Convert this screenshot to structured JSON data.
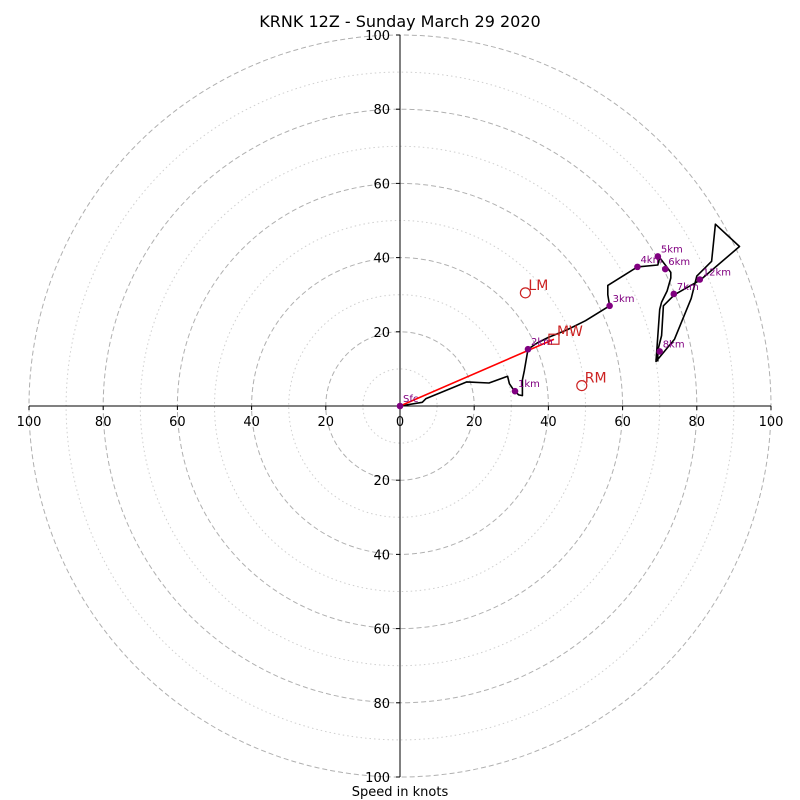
{
  "chart_data": {
    "type": "scatter",
    "subtype": "hodograph",
    "title": "KRNK 12Z - Sunday March 29 2020",
    "xlabel": "Speed in knots",
    "ylabel": "",
    "xlim": [
      -100,
      100
    ],
    "ylim": [
      -100,
      100
    ],
    "ring_major": [
      20,
      40,
      60,
      80,
      100
    ],
    "ring_minor": [
      10,
      30,
      50,
      70,
      90
    ],
    "x_ticks": [
      "100",
      "80",
      "60",
      "40",
      "20",
      "0",
      "20",
      "40",
      "60",
      "80",
      "100"
    ],
    "x_tick_values": [
      -100,
      -80,
      -60,
      -40,
      -20,
      0,
      20,
      40,
      60,
      80,
      100
    ],
    "y_ticks": [
      "100",
      "80",
      "60",
      "40",
      "20",
      "20",
      "40",
      "60",
      "80",
      "100"
    ],
    "y_tick_values": [
      100,
      80,
      60,
      40,
      20,
      -20,
      -40,
      -60,
      -80,
      -100
    ],
    "grid": true,
    "colors": {
      "trace": "#000000",
      "height_points": "#800080",
      "storm_motion": "#cc2222",
      "mean_wind_vector": "#ff0000",
      "grid": "#b0b0b0"
    },
    "series": [
      {
        "x": [
          0,
          6,
          7,
          18,
          24,
          29,
          29.5,
          30.5,
          32,
          33,
          33,
          33.5,
          34.5,
          37,
          40,
          45,
          50,
          56.5,
          56,
          56,
          64,
          69.5,
          70,
          71.5,
          73,
          73,
          72,
          70.5,
          70,
          69,
          74,
          78.5,
          80,
          84,
          85,
          91.5,
          81,
          74,
          71,
          70.5,
          69.5,
          69.5
        ],
        "y": [
          0,
          1,
          2,
          6.5,
          6.2,
          8,
          6,
          4.5,
          3,
          2.8,
          7,
          9.5,
          15.3,
          17,
          18.5,
          20.5,
          23,
          27,
          30,
          32.5,
          37.5,
          38,
          40,
          38,
          36,
          34.5,
          31,
          28,
          26,
          12,
          18,
          29,
          35,
          39,
          49,
          43,
          34,
          30,
          27,
          19,
          15,
          12
        ]
      }
    ],
    "height_points": [
      {
        "label": "Sfc",
        "x": 0,
        "y": 0
      },
      {
        "label": "1km",
        "x": 31,
        "y": 4
      },
      {
        "label": "2km",
        "x": 34.5,
        "y": 15.3
      },
      {
        "label": "3km",
        "x": 56.5,
        "y": 27
      },
      {
        "label": "4km",
        "x": 64,
        "y": 37.5
      },
      {
        "label": "5km",
        "x": 69.5,
        "y": 40.3
      },
      {
        "label": "6km",
        "x": 71.5,
        "y": 36.9
      },
      {
        "label": "7km",
        "x": 73.8,
        "y": 30.2
      },
      {
        "label": "8km",
        "x": 70,
        "y": 14.7
      },
      {
        "label": "12km",
        "x": 80.8,
        "y": 34.1
      }
    ],
    "storm_motion": [
      {
        "label": "LM",
        "x": 33.8,
        "y": 30.5,
        "marker": "circle"
      },
      {
        "label": "RM",
        "x": 49,
        "y": 5.5,
        "marker": "circle"
      },
      {
        "label": "MW",
        "x": 41.5,
        "y": 18,
        "marker": "square"
      }
    ],
    "mean_wind_vector": {
      "from": [
        0,
        0
      ],
      "to": [
        41.5,
        18
      ]
    }
  }
}
